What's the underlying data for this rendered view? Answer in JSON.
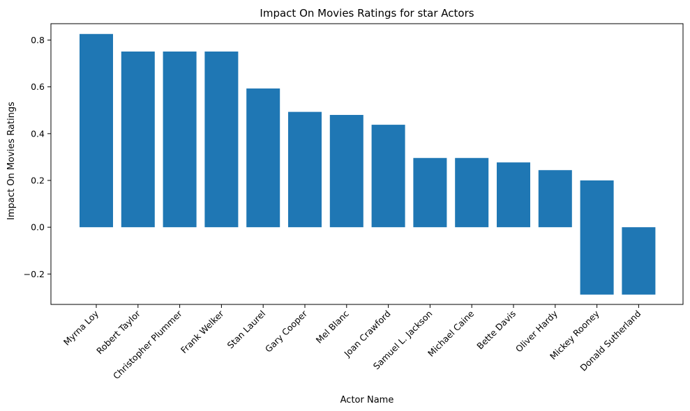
{
  "chart_data": {
    "type": "bar",
    "title": "Impact On Movies Ratings for star Actors",
    "xlabel": "Actor Name",
    "ylabel": "Impact On Movies Ratings",
    "categories": [
      "Myrna Loy",
      "Robert Taylor",
      "Christopher Plummer",
      "Frank Welker",
      "Stan Laurel",
      "Gary Cooper",
      "Mel Blanc",
      "Joan Crawford",
      "Samuel L. Jackson",
      "Michael Caine",
      "Bette Davis",
      "Oliver Hardy",
      "Mickey Rooney",
      "Donald Sutherland"
    ],
    "bar_ranges": [
      [
        0,
        0.826
      ],
      [
        0,
        0.751
      ],
      [
        0,
        0.751
      ],
      [
        0,
        0.751
      ],
      [
        0,
        0.593
      ],
      [
        0,
        0.493
      ],
      [
        0,
        0.48
      ],
      [
        0,
        0.438
      ],
      [
        0,
        0.296
      ],
      [
        0,
        0.296
      ],
      [
        0,
        0.277
      ],
      [
        0,
        0.244
      ],
      [
        -0.288,
        0.2
      ],
      [
        -0.288,
        0.0
      ]
    ],
    "yticks": [
      "−0.2",
      "0.0",
      "0.2",
      "0.4",
      "0.6",
      "0.8"
    ],
    "ytick_values": [
      -0.2,
      0.0,
      0.2,
      0.4,
      0.6,
      0.8
    ],
    "ylim": [
      -0.33,
      0.87
    ],
    "grid": false,
    "colors": {
      "bar": "#1f77b4",
      "axis": "#000000"
    }
  }
}
